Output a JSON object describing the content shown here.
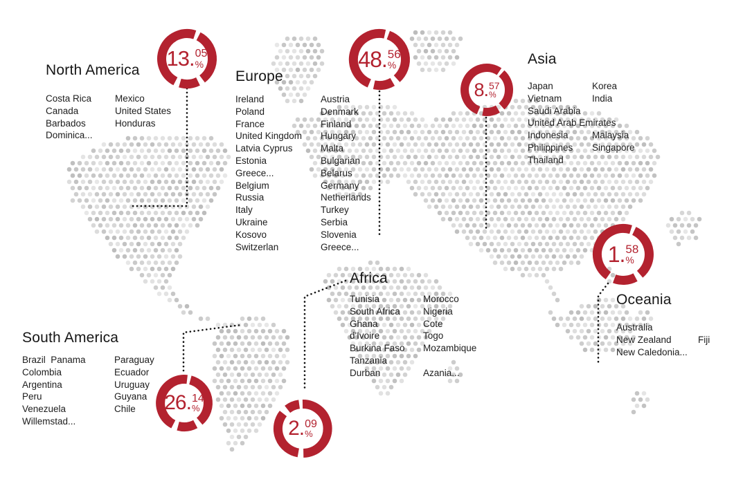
{
  "percent_sign": "%",
  "accent_color": "#b3222f",
  "map_dot_colors": [
    "#e9e9e9",
    "#bcbcbc"
  ],
  "connector_color": "#141414",
  "chart_data": {
    "type": "pie",
    "categories": [
      "North America",
      "Europe",
      "Asia",
      "Africa",
      "South America",
      "Oceania"
    ],
    "values": [
      13.05,
      48.56,
      8.57,
      2.09,
      26.14,
      1.58
    ],
    "title": "",
    "legend_position": "none"
  },
  "regions": [
    {
      "id": "north-america",
      "name": "North America",
      "percent": "13.05",
      "pct_main": "13.",
      "pct_frac": "05",
      "columns": [
        [
          "Costa Rica",
          "Canada",
          "Barbados",
          "Dominica..."
        ],
        [
          "Mexico",
          "United States",
          "Honduras"
        ]
      ]
    },
    {
      "id": "europe",
      "name": "Europe",
      "percent": "48.56",
      "pct_main": "48.",
      "pct_frac": "56",
      "columns": [
        [
          "Ireland",
          "Poland",
          "France",
          "United Kingdom",
          "Latvia Cyprus",
          "Estonia",
          "Greece...",
          "Belgium",
          "Russia",
          "Italy",
          "Ukraine",
          "Kosovo",
          "Switzerlan"
        ],
        [
          "Austria",
          "Denmark",
          "Finland",
          "Hungary",
          "Malta",
          "Bulgarian",
          "Belarus",
          "Germany",
          "Netherlands",
          "Turkey",
          "Serbia",
          "Slovenia",
          "Greece..."
        ]
      ]
    },
    {
      "id": "asia",
      "name": "Asia",
      "percent": "8.57",
      "pct_main": "8.",
      "pct_frac": "57",
      "columns": [
        [
          "Japan",
          "Vietnam",
          "Saudi Arabia",
          "United Arab Emirates",
          "Indonesia",
          "Philippines",
          "Thailand"
        ],
        [
          "Korea",
          "India",
          "",
          "",
          "Malaysia",
          "Singapore"
        ]
      ]
    },
    {
      "id": "africa",
      "name": "Africa",
      "percent": "2.09",
      "pct_main": "2.",
      "pct_frac": "09",
      "columns": [
        [
          "Tunisia",
          "South Africa",
          "Ghana",
          "d'Ivoire",
          "Burkina Faso",
          "Tanzania",
          "Durban"
        ],
        [
          "Morocco",
          "Nigeria",
          "Cote",
          "Togo",
          "Mozambique",
          "",
          "Azania..."
        ]
      ]
    },
    {
      "id": "south-america",
      "name": "South America",
      "percent": "26.14",
      "pct_main": "26.",
      "pct_frac": "14",
      "columns": [
        [
          "Brazil  Panama",
          "Colombia",
          "Argentina",
          "Peru",
          "Venezuela",
          "Willemstad..."
        ],
        [
          "Paraguay",
          "Ecuador",
          "Uruguay",
          "Guyana",
          "Chile"
        ]
      ]
    },
    {
      "id": "oceania",
      "name": "Oceania",
      "percent": "1.58",
      "pct_main": "1.",
      "pct_frac": "58",
      "columns": [
        [
          "Australia",
          "New Zealand",
          "New Caledonia..."
        ],
        [
          "",
          "Fiji",
          ""
        ]
      ]
    }
  ]
}
